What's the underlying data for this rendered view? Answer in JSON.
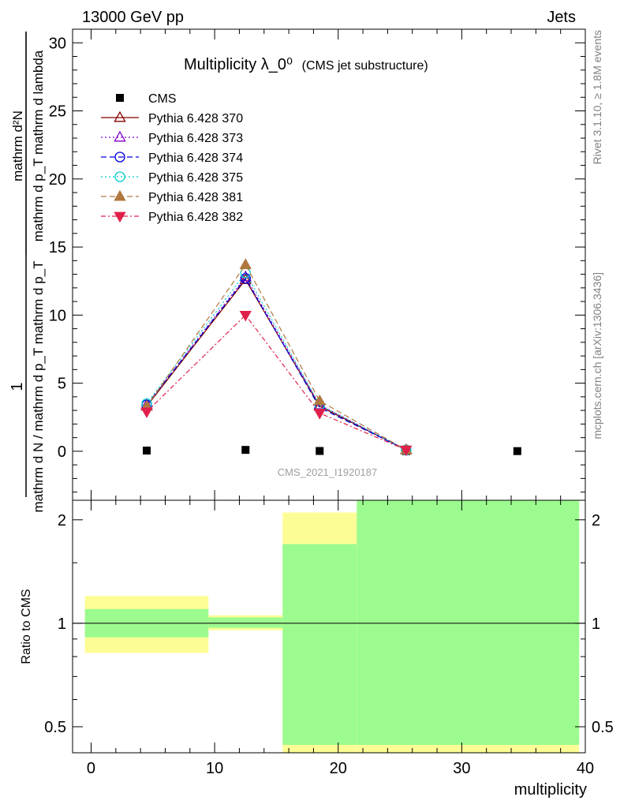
{
  "header": {
    "left": "13000 GeV pp",
    "right": "Jets"
  },
  "side_labels": {
    "rivet": "Rivet 3.1.10, ≥ 1.8M events",
    "mcplots": "mcplots.cern.ch [arXiv:1306.3436]"
  },
  "colors": {
    "cms": "#000000",
    "p370": "#800000",
    "p373": "#8000cc",
    "p374": "#0000e0",
    "p375": "#00cccc",
    "p381": "#b07840",
    "p382": "#e0204a",
    "band_inner": "#9cfb8f",
    "band_outer": "#fdfd96"
  },
  "chart_data": [
    {
      "type": "line",
      "title": "Multiplicity λ_0⁰",
      "subtitle": "(CMS jet substructure)",
      "analysis_label": "CMS_2021_I1920187",
      "ylabel_top": "1",
      "ylabel_num": "mathrm d²N",
      "ylabel_den": "mathrm d p_T mathrm d lambda",
      "ylabel_prefix_top": "",
      "ylabel_prefix": "mathrm d N / mathrm d p_T mathrm d p_T",
      "ylabel_full_left": "1 / (mathrm d N / mathrm d p_T) · mathrm d²N / (mathrm d p_T mathrm d lambda)",
      "xlim": [
        -1.5,
        40
      ],
      "ylim": [
        -3.6,
        31
      ],
      "yticks": [
        0,
        5,
        10,
        15,
        20,
        25,
        30
      ],
      "yticklabels": [
        "0",
        "5",
        "10",
        "15",
        "20",
        "25",
        "30"
      ],
      "legend_placement": "top-left",
      "series": [
        {
          "name": "CMS",
          "key": "cms",
          "marker": "square",
          "dash": "none",
          "x": [
            4.5,
            12.5,
            18.5,
            25.5,
            34.5
          ],
          "y": [
            0.05,
            0.1,
            0.02,
            0.01,
            0.01
          ]
        },
        {
          "name": "Pythia 6.428 370",
          "key": "p370",
          "marker": "triangle-open",
          "dash": "solid",
          "x": [
            4.5,
            12.5,
            18.5,
            25.5
          ],
          "y": [
            3.3,
            12.6,
            3.3,
            0.1
          ]
        },
        {
          "name": "Pythia 6.428 373",
          "key": "p373",
          "marker": "triangle-open",
          "dash": "dot",
          "x": [
            4.5,
            12.5,
            18.5,
            25.5
          ],
          "y": [
            3.4,
            12.8,
            3.4,
            0.1
          ]
        },
        {
          "name": "Pythia 6.428 374",
          "key": "p374",
          "marker": "circle-open",
          "dash": "dash",
          "x": [
            4.5,
            12.5,
            18.5,
            25.5
          ],
          "y": [
            3.4,
            12.7,
            3.2,
            0.1
          ]
        },
        {
          "name": "Pythia 6.428 375",
          "key": "p375",
          "marker": "circle-open",
          "dash": "dot",
          "x": [
            4.5,
            12.5,
            18.5,
            25.5
          ],
          "y": [
            3.5,
            13.1,
            3.4,
            0.1
          ]
        },
        {
          "name": "Pythia 6.428 381",
          "key": "p381",
          "marker": "triangle-filled",
          "dash": "dash",
          "x": [
            4.5,
            12.5,
            18.5,
            25.5
          ],
          "y": [
            3.3,
            13.7,
            3.7,
            0.1
          ]
        },
        {
          "name": "Pythia 6.428 382",
          "key": "p382",
          "marker": "triangle-down-filled",
          "dash": "dashdot",
          "x": [
            4.5,
            12.5,
            18.5,
            25.5
          ],
          "y": [
            2.9,
            10.0,
            2.8,
            0.1
          ]
        }
      ]
    },
    {
      "type": "area",
      "ylabel": "Ratio to CMS",
      "xlabel": "multiplicity",
      "xlim": [
        -1.5,
        40
      ],
      "ylim": [
        0.42,
        2.28
      ],
      "log_y": true,
      "xticks": [
        0,
        10,
        20,
        30,
        40
      ],
      "xticklabels": [
        "0",
        "10",
        "20",
        "30",
        "40"
      ],
      "yticks": [
        0.5,
        1,
        2
      ],
      "yticklabels": [
        "0.5",
        "1",
        "2"
      ],
      "reference_line": 1,
      "bands": [
        {
          "x_range": [
            -0.5,
            9.5
          ],
          "inner": [
            0.91,
            1.1
          ],
          "outer": [
            0.82,
            1.2
          ]
        },
        {
          "x_range": [
            9.5,
            15.5
          ],
          "inner": [
            0.97,
            1.04
          ],
          "outer": [
            0.955,
            1.055
          ]
        },
        {
          "x_range": [
            15.5,
            21.5
          ],
          "inner": [
            0.42,
            1.7
          ],
          "outer": [
            0.42,
            2.1
          ]
        },
        {
          "x_range": [
            21.5,
            39.5
          ],
          "inner": [
            0.42,
            2.28
          ],
          "outer": [
            0.42,
            2.28
          ]
        }
      ]
    }
  ]
}
